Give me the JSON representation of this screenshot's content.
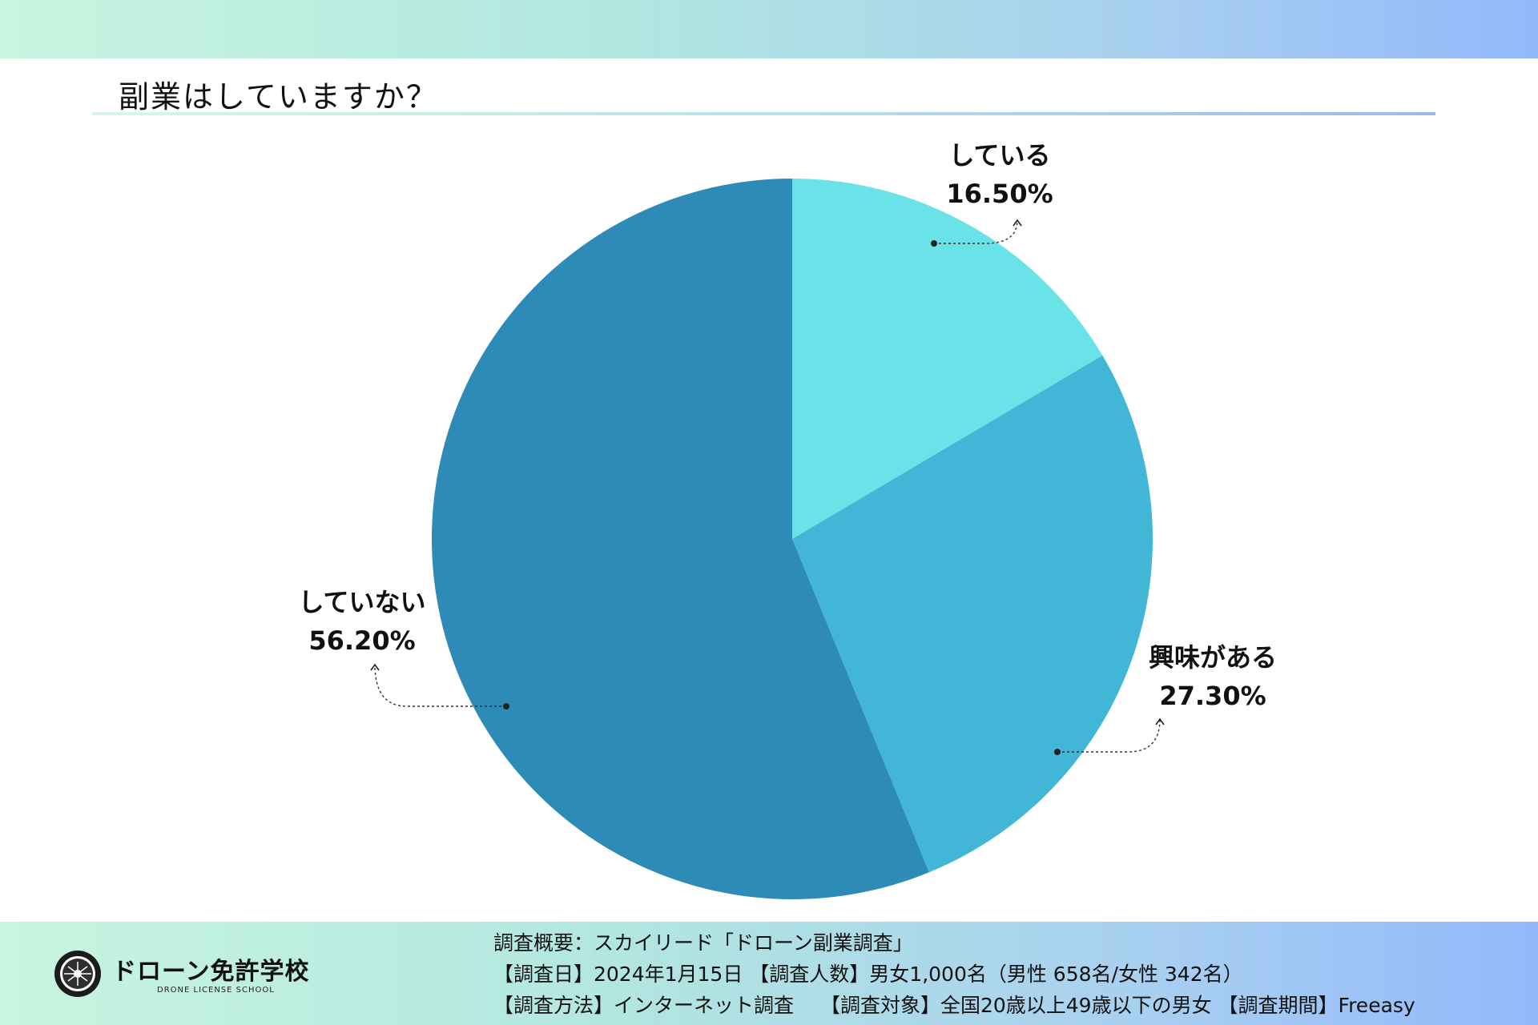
{
  "header": {
    "title": "副業はしていますか？"
  },
  "chart_data": {
    "type": "pie",
    "title": "副業はしていますか？",
    "slices": [
      {
        "label": "している",
        "value": 16.5,
        "display": "16.50%",
        "color": "#6ae3e8"
      },
      {
        "label": "興味がある",
        "value": 27.3,
        "display": "27.30%",
        "color": "#42b6d6"
      },
      {
        "label": "していない",
        "value": 56.2,
        "display": "56.20%",
        "color": "#2e8ab6"
      }
    ]
  },
  "footer": {
    "logo_name": "ドローン免許学校",
    "logo_sub": "DRONE LICENSE SCHOOL",
    "survey_lines": [
      "調査概要：スカイリード「ドローン副業調査」",
      "【調査日】2024年1月15日 【調査人数】男女1,000名（男性 658名/女性 342名）",
      "【調査方法】インターネット調査　 【調査対象】全国20歳以上49歳以下の男女 【調査期間】Freeasy"
    ]
  }
}
